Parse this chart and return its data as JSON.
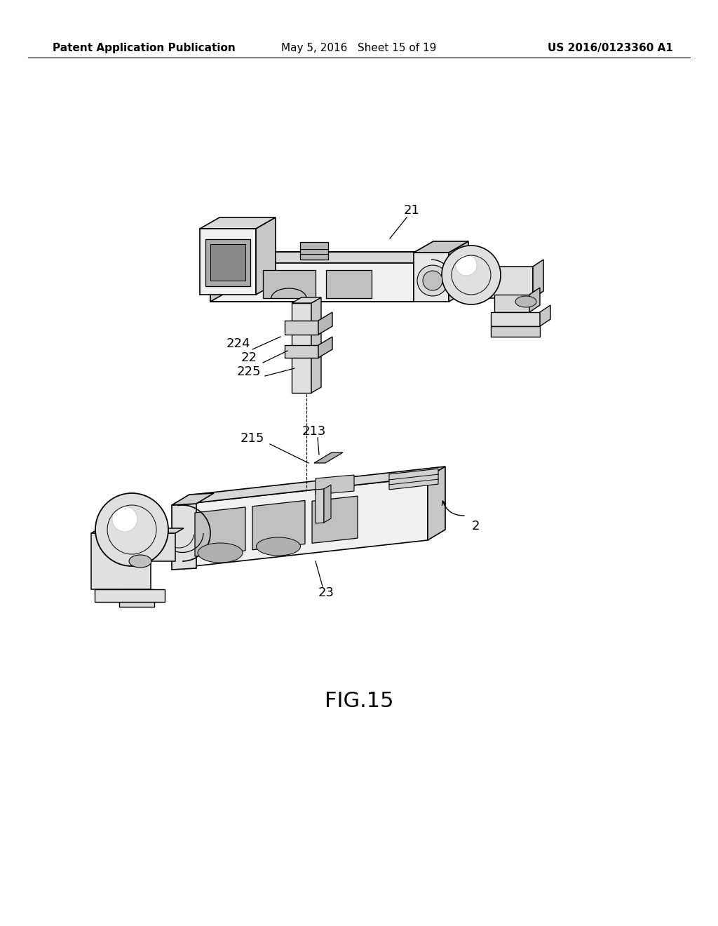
{
  "background_color": "#ffffff",
  "page_width": 10.24,
  "page_height": 13.2,
  "header_left": "Patent Application Publication",
  "header_center": "May 5, 2016   Sheet 15 of 19",
  "header_right": "US 2016/0123360 A1",
  "header_fontsize": 11,
  "figure_label": "FIG.15",
  "figure_label_fontsize": 22,
  "label_fontsize": 13,
  "line_color": "#000000"
}
